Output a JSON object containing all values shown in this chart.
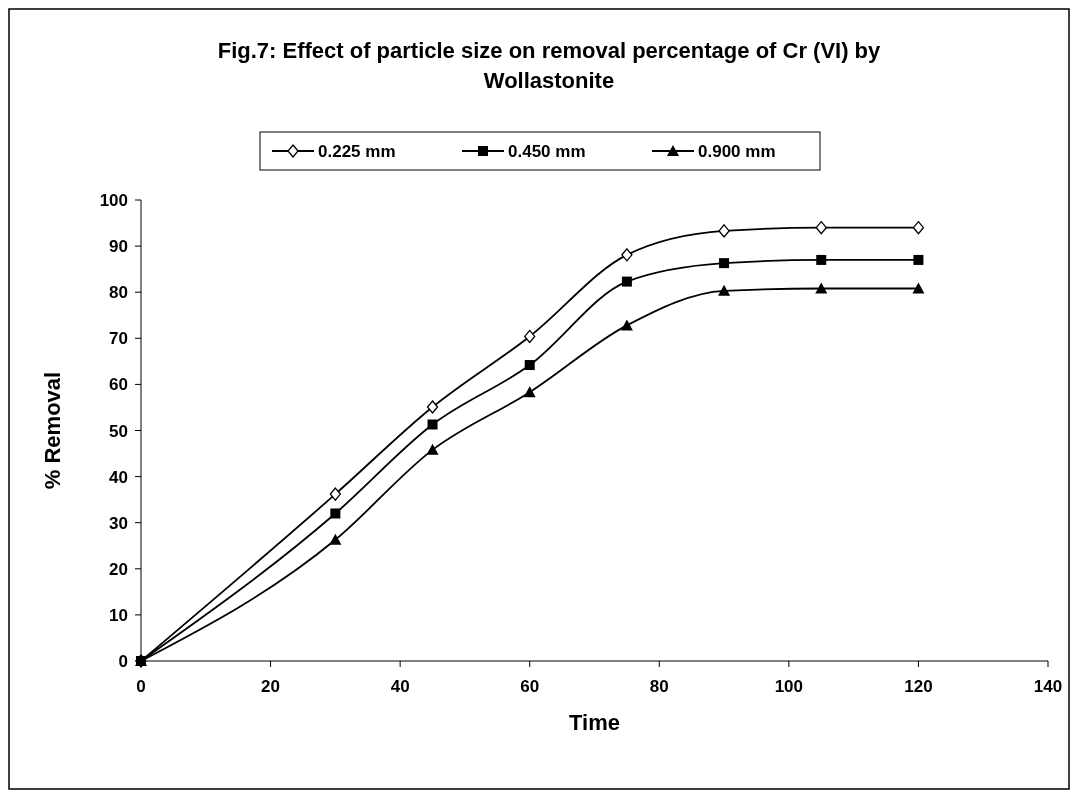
{
  "chart_data": {
    "type": "line",
    "title": "Fig.7: Effect of particle size on removal percentage of Cr (VI) by Wollastonite",
    "xlabel": "Time",
    "ylabel": "% Removal",
    "x": [
      0,
      30,
      45,
      60,
      75,
      90,
      105,
      120
    ],
    "series": [
      {
        "name": "0.225 mm",
        "color": "#000000",
        "marker": "diamond",
        "values": [
          0,
          36.2,
          55.1,
          70.4,
          88.1,
          93.3,
          94,
          94
        ]
      },
      {
        "name": "0.450 mm",
        "color": "#000000",
        "marker": "square",
        "values": [
          0,
          32,
          51.3,
          64.2,
          82.3,
          86.3,
          87,
          87
        ]
      },
      {
        "name": "0.900 mm",
        "color": "#000000",
        "marker": "triangle",
        "values": [
          0,
          26.3,
          45.8,
          58.3,
          72.8,
          80.3,
          80.8,
          80.8
        ]
      }
    ],
    "xlim": [
      0,
      140
    ],
    "xticks": [
      0,
      20,
      40,
      60,
      80,
      100,
      120,
      140
    ],
    "ylim": [
      0,
      100
    ],
    "yticks": [
      0,
      10,
      20,
      30,
      40,
      50,
      60,
      70,
      80,
      90,
      100
    ],
    "grid": false,
    "legend": "top",
    "line_style": "solid"
  }
}
